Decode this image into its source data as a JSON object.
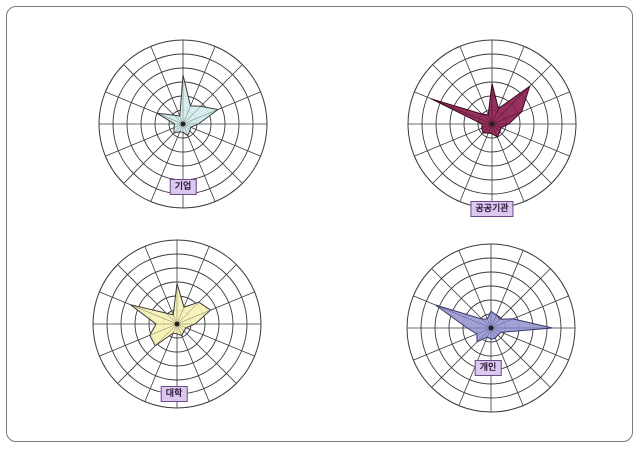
{
  "colors": {
    "grid": "#3a3a3a",
    "center_dot": "#222222"
  },
  "chart_data": [
    {
      "type": "radar",
      "title": "",
      "label": "기업",
      "fill": "#d2ecec",
      "stroke": "#3a3a3a",
      "rmax": 100,
      "rings": 5,
      "values": [
        70,
        28,
        36,
        54,
        22,
        12,
        14,
        18,
        12,
        12,
        18,
        14,
        12,
        40,
        18,
        12
      ]
    },
    {
      "type": "radar",
      "title": "",
      "label": "공공기관",
      "fill": "#8b1f4e",
      "stroke": "#3a0a1e",
      "rmax": 100,
      "rings": 5,
      "values": [
        58,
        24,
        76,
        46,
        24,
        14,
        16,
        20,
        14,
        14,
        18,
        16,
        14,
        94,
        20,
        14
      ]
    },
    {
      "type": "radar",
      "title": "",
      "label": "대학",
      "fill": "#f6f2b4",
      "stroke": "#3a3a3a",
      "rmax": 100,
      "rings": 5,
      "values": [
        58,
        26,
        44,
        52,
        26,
        14,
        14,
        18,
        14,
        14,
        44,
        42,
        30,
        72,
        22,
        14
      ]
    },
    {
      "type": "radar",
      "title": "",
      "label": "개인",
      "fill": "#9a9ad4",
      "stroke": "#3a3a6a",
      "rmax": 100,
      "rings": 5,
      "values": [
        24,
        20,
        18,
        34,
        88,
        16,
        14,
        16,
        16,
        14,
        28,
        22,
        34,
        86,
        18,
        14
      ]
    }
  ]
}
